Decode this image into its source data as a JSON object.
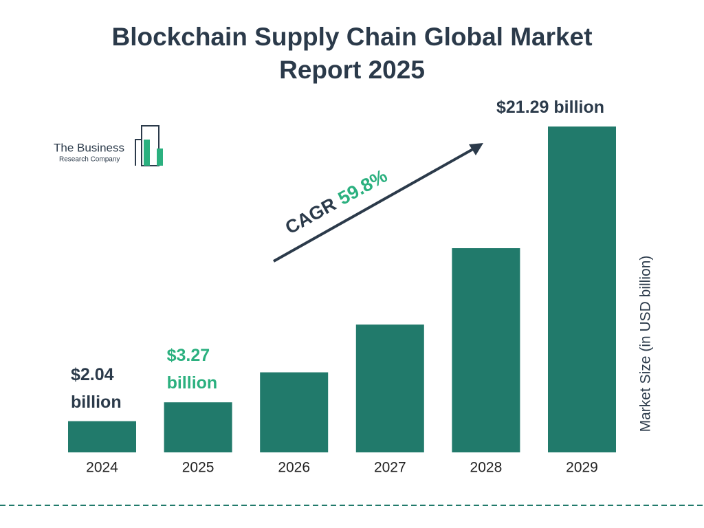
{
  "chart_data": {
    "type": "bar",
    "title": "Blockchain Supply Chain Global Market Report 2025",
    "categories": [
      "2024",
      "2025",
      "2026",
      "2027",
      "2028",
      "2029"
    ],
    "values": [
      2.04,
      3.27,
      5.23,
      8.35,
      13.34,
      21.29
    ],
    "value_labels": [
      "$2.04 billion",
      "$3.27 billion",
      null,
      null,
      null,
      "$21.29 billion"
    ],
    "color": "#217a6b",
    "y_label": "Market Size (in USD billion)",
    "annotation": {
      "label": "CAGR",
      "value": "59.8%"
    }
  },
  "logo": {
    "line1": "The Business",
    "line2": "Research Company"
  }
}
